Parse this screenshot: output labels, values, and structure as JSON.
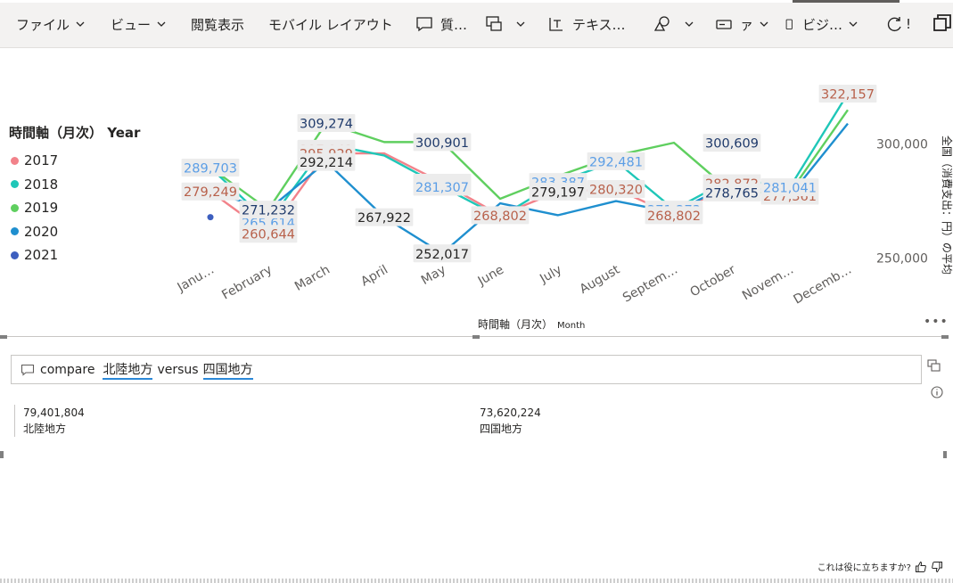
{
  "toolbar": {
    "items": [
      {
        "label": "ファイル",
        "chevron": true,
        "icon": ""
      },
      {
        "label": "ビュー",
        "chevron": true,
        "icon": ""
      },
      {
        "label": "閲覧表示",
        "chevron": false,
        "icon": ""
      },
      {
        "label": "モバイル レイアウト",
        "chevron": false,
        "icon": ""
      },
      {
        "label": "質…",
        "chevron": false,
        "icon": "comment-icon"
      },
      {
        "label": "",
        "chevron": true,
        "icon": "qa-icon"
      },
      {
        "label": "テキス…",
        "chevron": false,
        "icon": "textbox-icon"
      },
      {
        "label": "",
        "chevron": true,
        "icon": "shapes-icon"
      },
      {
        "label": "ァ",
        "chevron": true,
        "icon": "button-icon"
      },
      {
        "label": "ビジ…",
        "chevron": true,
        "icon": "mobile-icon"
      },
      {
        "label": "!",
        "chevron": false,
        "icon": "refresh-icon"
      }
    ]
  },
  "chart_data": {
    "type": "line",
    "xlabel": "時間軸（月次）",
    "xlabel_sub": "Month",
    "ylabel": "全国（消費支出：円）の平均",
    "ylim": [
      240000,
      330000
    ],
    "yticks": [
      "300,000",
      "250,000"
    ],
    "ytick_values": [
      300000,
      250000
    ],
    "categories": [
      "Janu…",
      "February",
      "March",
      "April",
      "May",
      "June",
      "July",
      "August",
      "Septem…",
      "October",
      "Novem…",
      "Decemb…"
    ],
    "legend_title": "時間軸（月次） Year",
    "series": [
      {
        "name": "2017",
        "color": "#f2828a",
        "values": [
          279249,
          260644,
          295929,
          295929,
          283056,
          268802,
          279197,
          280320,
          268802,
          282872,
          277361,
          null
        ]
      },
      {
        "name": "2018",
        "color": "#1fc7b8",
        "values": [
          289703,
          265614,
          300000,
          295000,
          281307,
          268000,
          283387,
          292481,
          271273,
          285000,
          281041,
          322157
        ]
      },
      {
        "name": "2019",
        "color": "#5fcf5f",
        "values": [
          289703,
          271232,
          309274,
          300901,
          300901,
          276000,
          286000,
          295000,
          300609,
          278765,
          278765,
          315000
        ]
      },
      {
        "name": "2020",
        "color": "#1f8fcf",
        "values": [
          279249,
          271232,
          292214,
          267922,
          252017,
          274000,
          268802,
          275000,
          270000,
          282872,
          277361,
          309000
        ]
      },
      {
        "name": "2021",
        "color": "#3d5fbf",
        "values": [
          267922,
          null,
          null,
          null,
          null,
          null,
          null,
          null,
          null,
          null,
          null,
          null
        ]
      }
    ],
    "data_labels": [
      {
        "text": "289,703",
        "color": "#5b9ee6",
        "cat": 0,
        "value": 289703
      },
      {
        "text": "279,249",
        "color": "#b8614b",
        "cat": 0,
        "value": 279249
      },
      {
        "text": "265,614",
        "color": "#5b9ee6",
        "cat": 1,
        "value": 265614
      },
      {
        "text": "271,232",
        "color": "#1f3a6b",
        "cat": 1,
        "value": 271232
      },
      {
        "text": "260,644",
        "color": "#b8614b",
        "cat": 1,
        "value": 260644
      },
      {
        "text": "309,274",
        "color": "#1f3a6b",
        "cat": 2,
        "value": 309274
      },
      {
        "text": "297,942",
        "color": "#b8614b",
        "cat": 2,
        "value": 297942
      },
      {
        "text": "295,929",
        "color": "#b8614b",
        "cat": 2,
        "value": 295929
      },
      {
        "text": "292,214",
        "color": "#252423",
        "cat": 2,
        "value": 292214
      },
      {
        "text": "267,922",
        "color": "#252423",
        "cat": 3,
        "value": 267922
      },
      {
        "text": "300,901",
        "color": "#1f3a6b",
        "cat": 4,
        "value": 300901
      },
      {
        "text": "283,056",
        "color": "#b8614b",
        "cat": 4,
        "value": 283056
      },
      {
        "text": "281,307",
        "color": "#5b9ee6",
        "cat": 4,
        "value": 281307
      },
      {
        "text": "252,017",
        "color": "#252423",
        "cat": 4,
        "value": 252017
      },
      {
        "text": "268,802",
        "color": "#b8614b",
        "cat": 5,
        "value": 268802
      },
      {
        "text": "283,387",
        "color": "#5b9ee6",
        "cat": 6,
        "value": 283387
      },
      {
        "text": "279,197",
        "color": "#252423",
        "cat": 6,
        "value": 279197
      },
      {
        "text": "292,481",
        "color": "#5b9ee6",
        "cat": 7,
        "value": 292481
      },
      {
        "text": "280,320",
        "color": "#b8614b",
        "cat": 7,
        "value": 280320
      },
      {
        "text": "271,273",
        "color": "#5b9ee6",
        "cat": 8,
        "value": 271273
      },
      {
        "text": "268,802",
        "color": "#b8614b",
        "cat": 8,
        "value": 268802
      },
      {
        "text": "300,609",
        "color": "#1f3a6b",
        "cat": 9,
        "value": 300609
      },
      {
        "text": "282,872",
        "color": "#b8614b",
        "cat": 9,
        "value": 282872
      },
      {
        "text": "278,765",
        "color": "#1f3a6b",
        "cat": 9,
        "value": 278765
      },
      {
        "text": "277,361",
        "color": "#b8614b",
        "cat": 10,
        "value": 277361
      },
      {
        "text": "281,041",
        "color": "#5b9ee6",
        "cat": 10,
        "value": 281041
      },
      {
        "text": "322,157",
        "color": "#b8614b",
        "cat": 11,
        "value": 322157
      }
    ],
    "legend_placement": "left",
    "grid": false
  },
  "qa": {
    "query_prefix": "compare",
    "term1": "北陸地方",
    "connector": "versus",
    "term2": "四国地方",
    "results": [
      {
        "value": "79,401,804",
        "label": "北陸地方"
      },
      {
        "value": "73,620,224",
        "label": "四国地方"
      }
    ],
    "helpful_text": "これは役に立ちますか?"
  }
}
